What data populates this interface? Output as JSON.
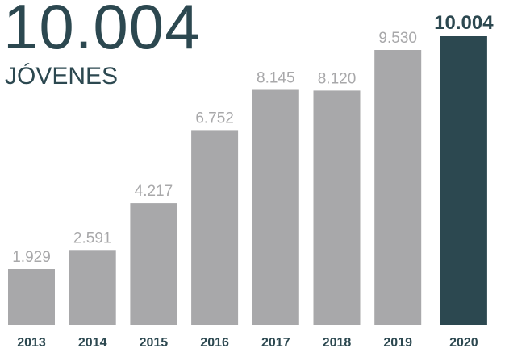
{
  "headline": {
    "value": "10.004",
    "label": "JÓVENES"
  },
  "colors": {
    "bar": "#a8a8aa",
    "bar_highlight": "#2c4850",
    "value_label": "#a8a8aa",
    "value_label_highlight": "#2c4850",
    "axis_label": "#2c4850"
  },
  "chart_data": {
    "type": "bar",
    "categories": [
      "2013",
      "2014",
      "2015",
      "2016",
      "2017",
      "2018",
      "2019",
      "2020"
    ],
    "values": [
      1929,
      2591,
      4217,
      6752,
      8145,
      8120,
      9530,
      10004
    ],
    "value_labels": [
      "1.929",
      "2.591",
      "4.217",
      "6.752",
      "8.145",
      "8.120",
      "9.530",
      "10.004"
    ],
    "highlight_index": 7,
    "title": "",
    "xlabel": "",
    "ylabel": "",
    "ylim": [
      0,
      10004
    ],
    "grid": false,
    "legend": "none"
  }
}
